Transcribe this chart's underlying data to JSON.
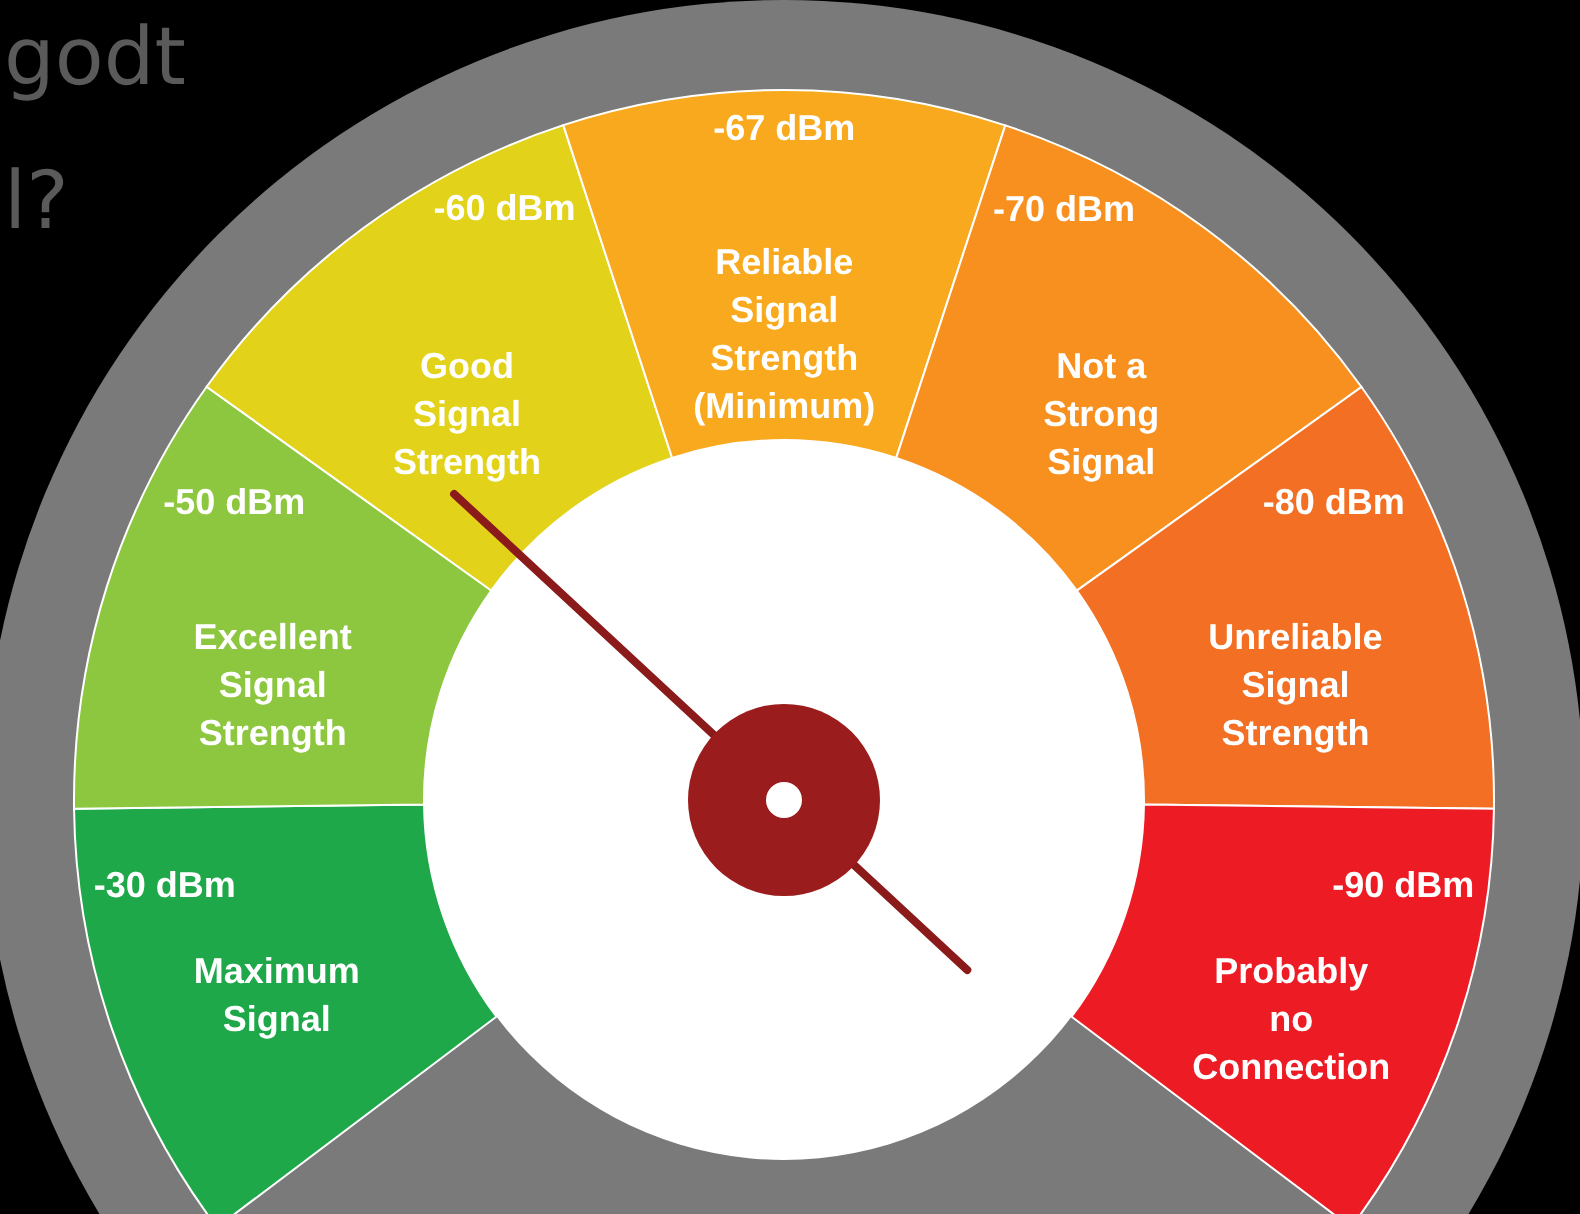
{
  "chart_data": {
    "type": "donut",
    "categories": [
      "Maximum Signal",
      "Excellent Signal Strength",
      "Good Signal Strength",
      "Reliable Signal Strength (Minimum)",
      "Not a Strong Signal",
      "Unreliable Signal Strength",
      "Probably no Connection"
    ],
    "values": [
      14.29,
      14.29,
      14.29,
      14.28,
      14.28,
      14.28,
      14.29
    ],
    "colors": [
      "#1fa84a",
      "#8dc63f",
      "#e2d31a",
      "#f8a91d",
      "#f7901e",
      "#f26f23",
      "#ed1c24"
    ],
    "needle": "Good Signal Strength",
    "annotations": [
      "-30 dBm",
      "-50 dBm",
      "-60 dBm",
      "-67 dBm",
      "-70 dBm",
      "-80 dBm",
      "-90 dBm",
      "godt",
      "l?"
    ]
  }
}
